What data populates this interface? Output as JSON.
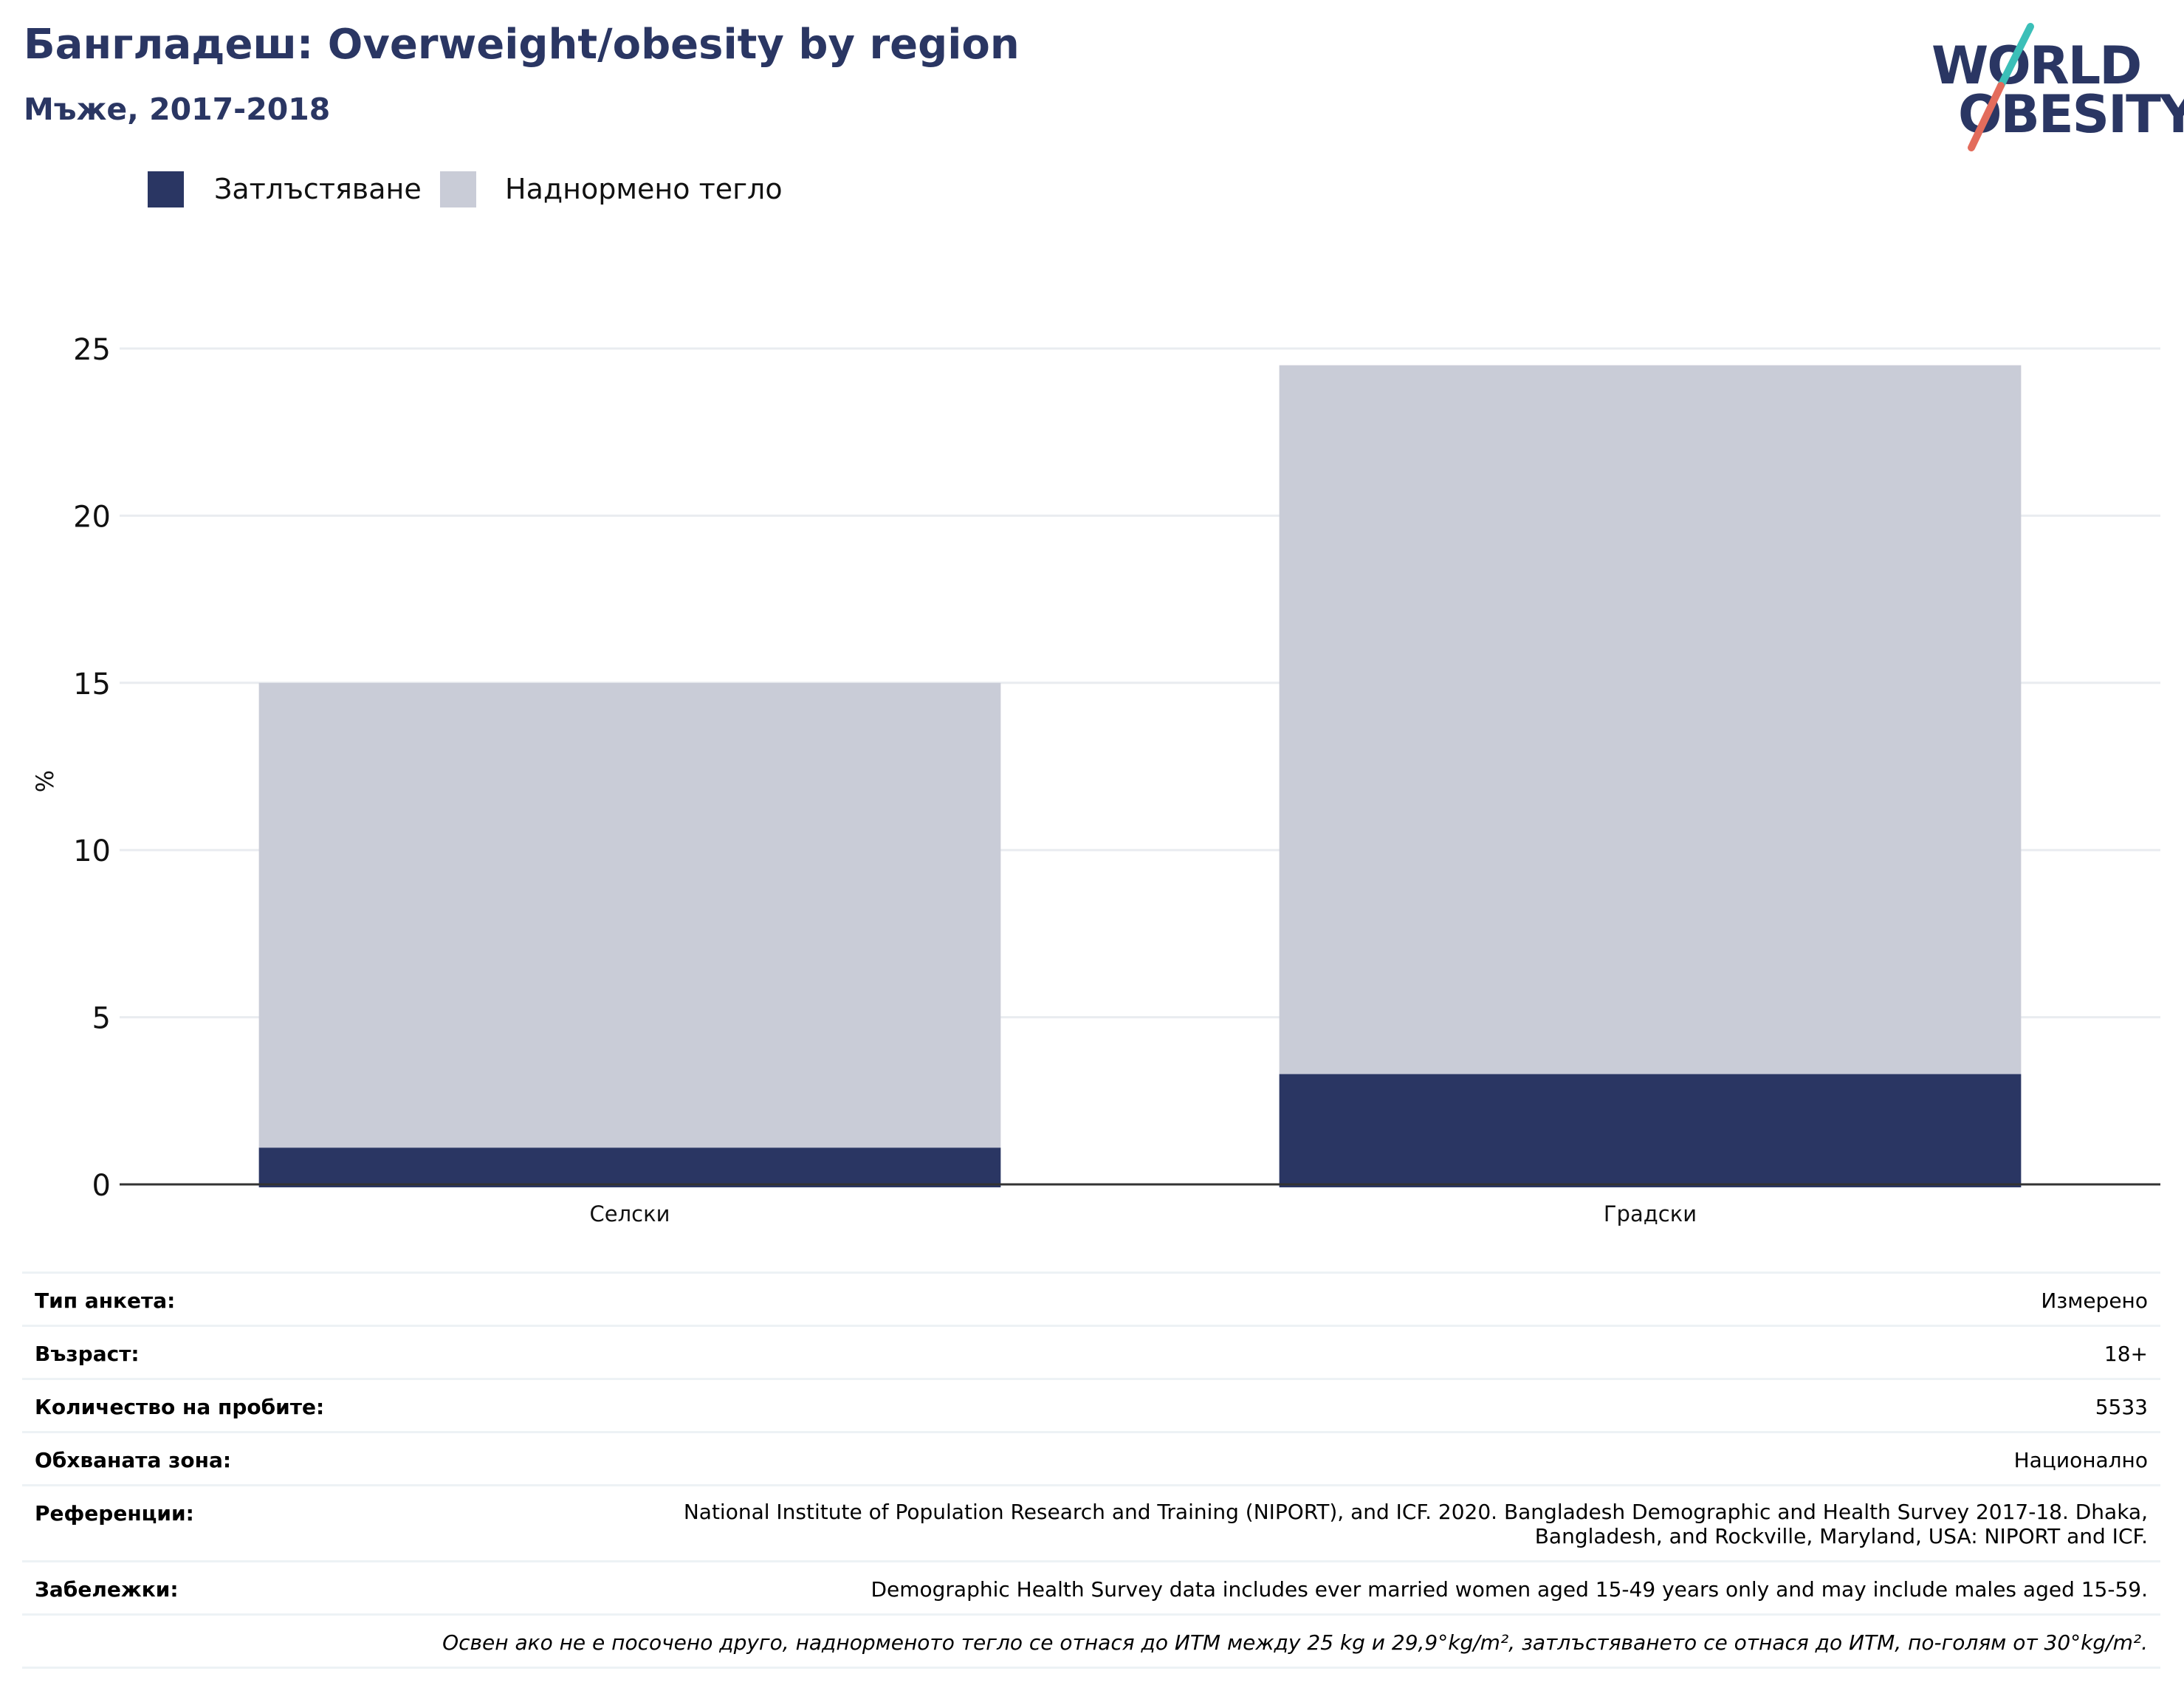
{
  "header": {
    "title": "Бангладеш: Overweight/obesity by region",
    "subtitle": "Мъже, 2017-2018"
  },
  "logo": {
    "line1": "WORLD",
    "line2": "OBESITY",
    "colors": {
      "text": "#2a3663",
      "slash_top": "#3bbfb8",
      "slash_bottom": "#e36c5c"
    }
  },
  "legend": [
    {
      "label": "Затлъстяване",
      "color": "#2a3663"
    },
    {
      "label": "Наднормено тегло",
      "color": "#c9ccd7"
    }
  ],
  "chart_data": {
    "type": "bar",
    "stacked": true,
    "categories": [
      "Селски",
      "Градски"
    ],
    "series": [
      {
        "name": "Затлъстяване",
        "values": [
          1.1,
          3.3
        ],
        "color": "#2a3663"
      },
      {
        "name": "Наднормено тегло",
        "values": [
          13.9,
          21.2
        ],
        "color": "#c9ccd7"
      }
    ],
    "ylabel": "%",
    "ylim": [
      0,
      25
    ],
    "yticks": [
      0,
      5,
      10,
      15,
      20,
      25
    ],
    "grid": true,
    "legend_position": "top-left"
  },
  "meta": {
    "survey_type": {
      "label": "Тип анкета:",
      "value": "Измерено"
    },
    "age": {
      "label": "Възраст:",
      "value": "18+"
    },
    "sample_size": {
      "label": "Количество на пробите:",
      "value": "5533"
    },
    "coverage": {
      "label": "Обхваната зона:",
      "value": "Национално"
    },
    "references": {
      "label": "Референции:",
      "value_line1": "National Institute of Population Research and Training (NIPORT), and ICF. 2020. Bangladesh Demographic and Health Survey 2017-18. Dhaka,",
      "value_line2": "Bangladesh, and Rockville, Maryland, USA: NIPORT and ICF."
    },
    "notes": {
      "label": "Забележки:",
      "value": "Demographic Health Survey data includes ever married women aged 15-49 years only and may include males aged 15-59."
    },
    "footnote": "Освен ако не е посочено друго, наднорменото тегло се отнася до ИТМ между 25 kg и 29,9°kg/m², затлъстяването се отнася до ИТМ, по-голям от 30°kg/m²."
  }
}
